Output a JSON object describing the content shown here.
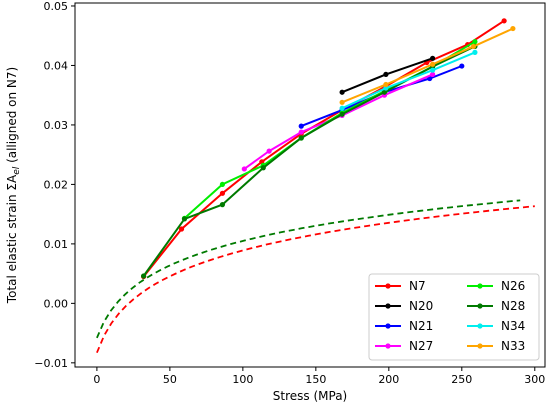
{
  "chart_data": {
    "type": "line",
    "xlabel": "Stress (MPa)",
    "ylabel": "Total elastic strain ΣA",
    "ylabel_sub": "el",
    "ylabel_suffix": " (alligned on N7)",
    "xlim": [
      -15,
      307
    ],
    "ylim": [
      -0.0107,
      0.0505
    ],
    "x_ticks": [
      0,
      50,
      100,
      150,
      200,
      250,
      300
    ],
    "y_ticks": [
      -0.01,
      0.0,
      0.01,
      0.02,
      0.03,
      0.04,
      0.05
    ],
    "x_tick_labels": [
      "0",
      "50",
      "100",
      "150",
      "200",
      "250",
      "300"
    ],
    "y_tick_labels": [
      "−0.01",
      "0.00",
      "0.01",
      "0.02",
      "0.03",
      "0.04",
      "0.05"
    ],
    "grid": false,
    "legend_position": "lower-right",
    "legend_columns": 2,
    "series": [
      {
        "name": "N7",
        "color": "#ff0000",
        "x": [
          32,
          58,
          86,
          113,
          140,
          168,
          198,
          226,
          254,
          279
        ],
        "y": [
          0.0045,
          0.0125,
          0.0185,
          0.0238,
          0.0285,
          0.0325,
          0.0365,
          0.0405,
          0.0435,
          0.0475
        ]
      },
      {
        "name": "N20",
        "color": "#000000",
        "x": [
          168,
          198,
          230
        ],
        "y": [
          0.0355,
          0.0385,
          0.0412
        ]
      },
      {
        "name": "N21",
        "color": "#0000ff",
        "x": [
          140,
          168,
          197,
          228,
          250
        ],
        "y": [
          0.0298,
          0.0325,
          0.0355,
          0.0378,
          0.0399
        ]
      },
      {
        "name": "N27",
        "color": "#ff00ff",
        "x": [
          101,
          118,
          140,
          168,
          197,
          230
        ],
        "y": [
          0.0226,
          0.0256,
          0.0288,
          0.0316,
          0.035,
          0.0385
        ]
      },
      {
        "name": "N26",
        "color": "#00ee00",
        "x": [
          60,
          86,
          114,
          140,
          168,
          198,
          230,
          259
        ],
        "y": [
          0.0143,
          0.02,
          0.0232,
          0.0278,
          0.032,
          0.0358,
          0.0398,
          0.044
        ]
      },
      {
        "name": "N28",
        "color": "#007a00",
        "x": [
          32,
          60,
          86,
          114,
          140,
          168,
          197,
          230,
          259
        ],
        "y": [
          0.0046,
          0.0142,
          0.0166,
          0.0228,
          0.0278,
          0.0318,
          0.0355,
          0.0398,
          0.0432
        ]
      },
      {
        "name": "N34",
        "color": "#00eeee",
        "x": [
          168,
          198,
          230,
          259
        ],
        "y": [
          0.0328,
          0.0362,
          0.0392,
          0.0422
        ]
      },
      {
        "name": "N33",
        "color": "#ffa500",
        "x": [
          168,
          198,
          230,
          258,
          285
        ],
        "y": [
          0.0338,
          0.0368,
          0.0402,
          0.0432,
          0.0462
        ]
      }
    ],
    "fits": [
      {
        "color": "#007a00",
        "x_range": [
          0,
          290
        ],
        "log_a": -0.0058,
        "log_b": 0.01565,
        "log_c": 10
      },
      {
        "color": "#ff0000",
        "x_range": [
          0,
          300
        ],
        "log_a": -0.0083,
        "log_b": 0.01652,
        "log_c": 10
      }
    ],
    "legend": {
      "left_column": [
        "N7",
        "N20",
        "N21",
        "N27"
      ],
      "right_column": [
        "N26",
        "N28",
        "N34",
        "N33"
      ]
    }
  }
}
